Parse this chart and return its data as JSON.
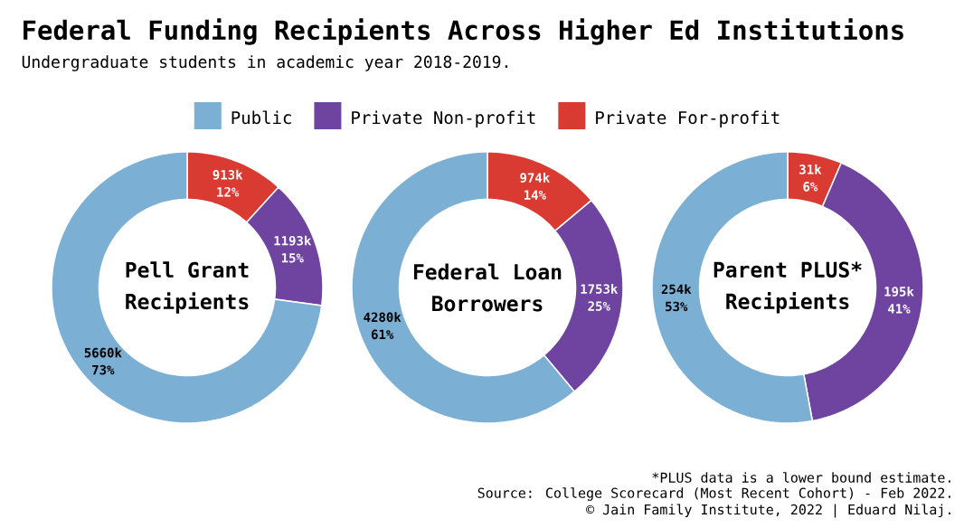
{
  "chart_data": [
    {
      "type": "donut",
      "title": "Pell Grant Recipients",
      "categories": [
        "Public",
        "Private Non-profit",
        "Private For-profit"
      ],
      "values": [
        5660000,
        1193000,
        913000
      ],
      "colors": [
        "#7bafd4",
        "#6f44a0",
        "#d93a31"
      ],
      "value_labels": [
        "5660k 73%",
        "1193k 15%",
        "913k 12%"
      ],
      "legend": "top",
      "annotations": [
        "Federal Funding Recipients Across Higher Ed Institutions",
        "Undergraduate students in academic year 2018-2019.",
        "*PLUS data is a lower bound estimate.",
        "Source: College Scorecard (Most Recent Cohort) - Feb 2022.",
        "© Jain Family Institute, 2022 | Eduard Nilaj."
      ]
    },
    {
      "type": "donut",
      "title": "Federal Loan Borrowers",
      "categories": [
        null,
        null,
        null
      ],
      "values": [
        4280000,
        1753000,
        974000
      ],
      "colors": [
        "#7bafd4",
        "#6f44a0",
        "#d93a31"
      ],
      "value_labels": [
        "4280k 61%",
        "1753k 25%",
        "974k 14%"
      ]
    },
    {
      "type": "donut",
      "title": "Parent PLUS* Recipients",
      "categories": [
        null,
        null,
        null
      ],
      "values": [
        254000,
        195000,
        31000
      ],
      "colors": [
        "#7bafd4",
        "#6f44a0",
        "#d93a31"
      ],
      "value_labels": [
        "254k 53%",
        "195k 41%",
        "31k 6%"
      ]
    }
  ]
}
